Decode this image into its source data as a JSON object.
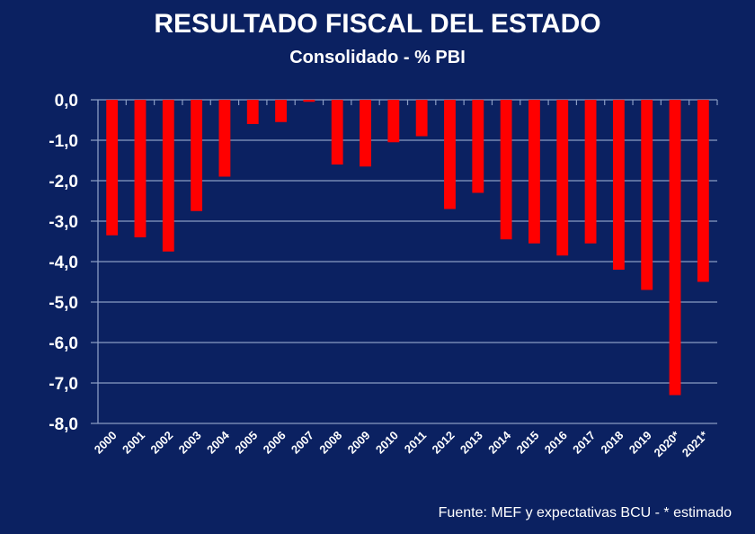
{
  "chart_data": {
    "type": "bar",
    "title": "RESULTADO FISCAL  DEL ESTADO",
    "subtitle": "Consolidado - % PBI",
    "xlabel": "",
    "ylabel": "",
    "ylim": [
      -8.0,
      0.0
    ],
    "yticks": [
      "0,0",
      "-1,0",
      "-2,0",
      "-3,0",
      "-4,0",
      "-5,0",
      "-6,0",
      "-7,0",
      "-8,0"
    ],
    "ytick_values": [
      0,
      -1,
      -2,
      -3,
      -4,
      -5,
      -6,
      -7,
      -8
    ],
    "grid": true,
    "legend": "none",
    "bar_color": "#ff0000",
    "background_color": "#0b2161",
    "categories": [
      "2000",
      "2001",
      "2002",
      "2003",
      "2004",
      "2005",
      "2006",
      "2007",
      "2008",
      "2009",
      "2010",
      "2011",
      "2012",
      "2013",
      "2014",
      "2015",
      "2016",
      "2017",
      "2018",
      "2019",
      "2020*",
      "2021*"
    ],
    "values": [
      -3.35,
      -3.4,
      -3.75,
      -2.75,
      -1.9,
      -0.6,
      -0.55,
      -0.05,
      -1.6,
      -1.65,
      -1.05,
      -0.9,
      -2.7,
      -2.3,
      -3.45,
      -3.55,
      -3.85,
      -3.55,
      -4.2,
      -4.7,
      -7.3,
      -4.5
    ],
    "source_note": "Fuente: MEF y expectativas BCU  -  * estimado"
  }
}
